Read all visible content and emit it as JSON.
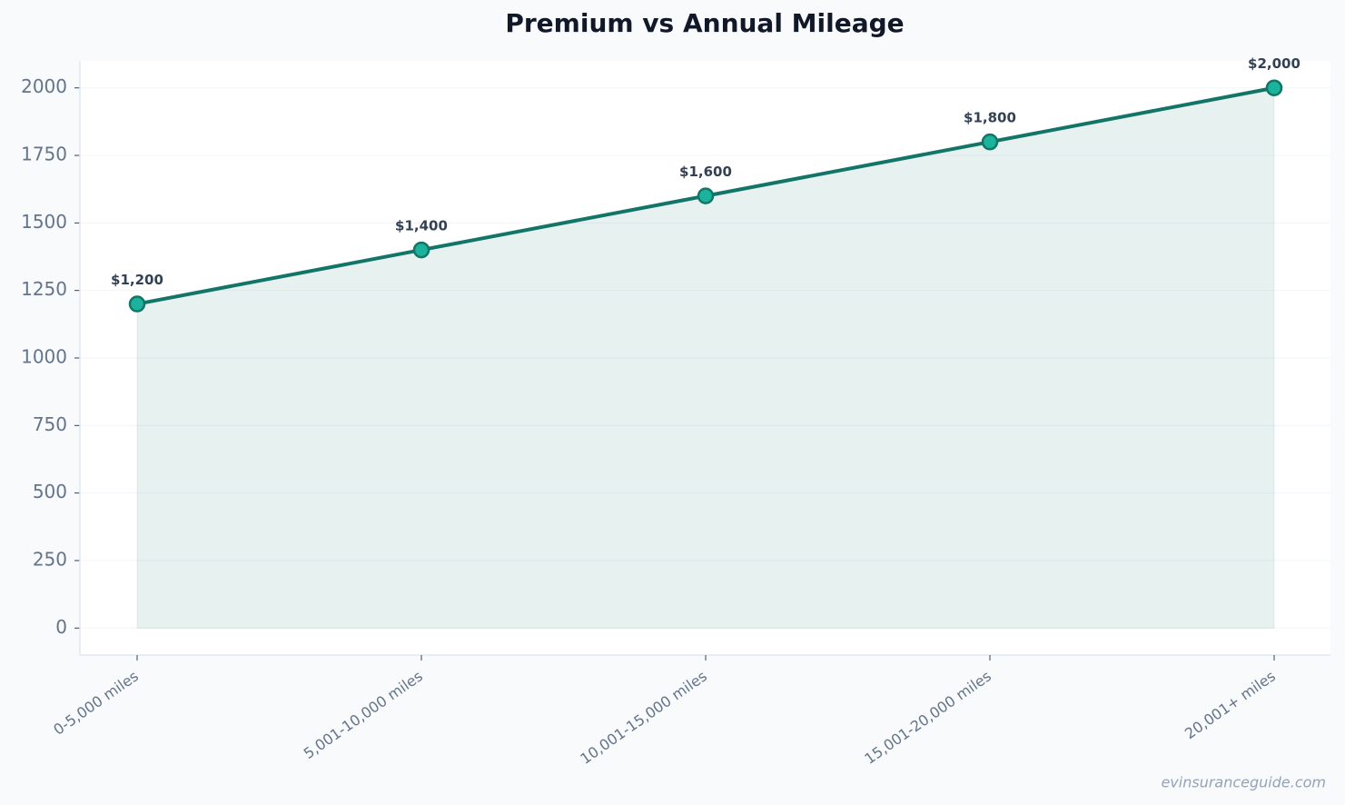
{
  "chart_data": {
    "type": "line",
    "title": "Premium vs Annual Mileage",
    "categories": [
      "0-5,000 miles",
      "5,001-10,000 miles",
      "10,001-15,000 miles",
      "15,001-20,000 miles",
      "20,001+ miles"
    ],
    "series": [
      {
        "name": "Premium",
        "color": "#137568",
        "marker_color": "#1cb39c",
        "fill": true,
        "values": [
          1200,
          1400,
          1600,
          1800,
          2000
        ],
        "value_labels": [
          "$1,200",
          "$1,400",
          "$1,600",
          "$1,800",
          "$2,000"
        ]
      }
    ],
    "ylim": [
      -100,
      2100
    ],
    "yticks": [
      0,
      250,
      500,
      750,
      1000,
      1250,
      1500,
      1750,
      2000
    ],
    "grid": true,
    "watermark": "evinsuranceguide.com"
  }
}
